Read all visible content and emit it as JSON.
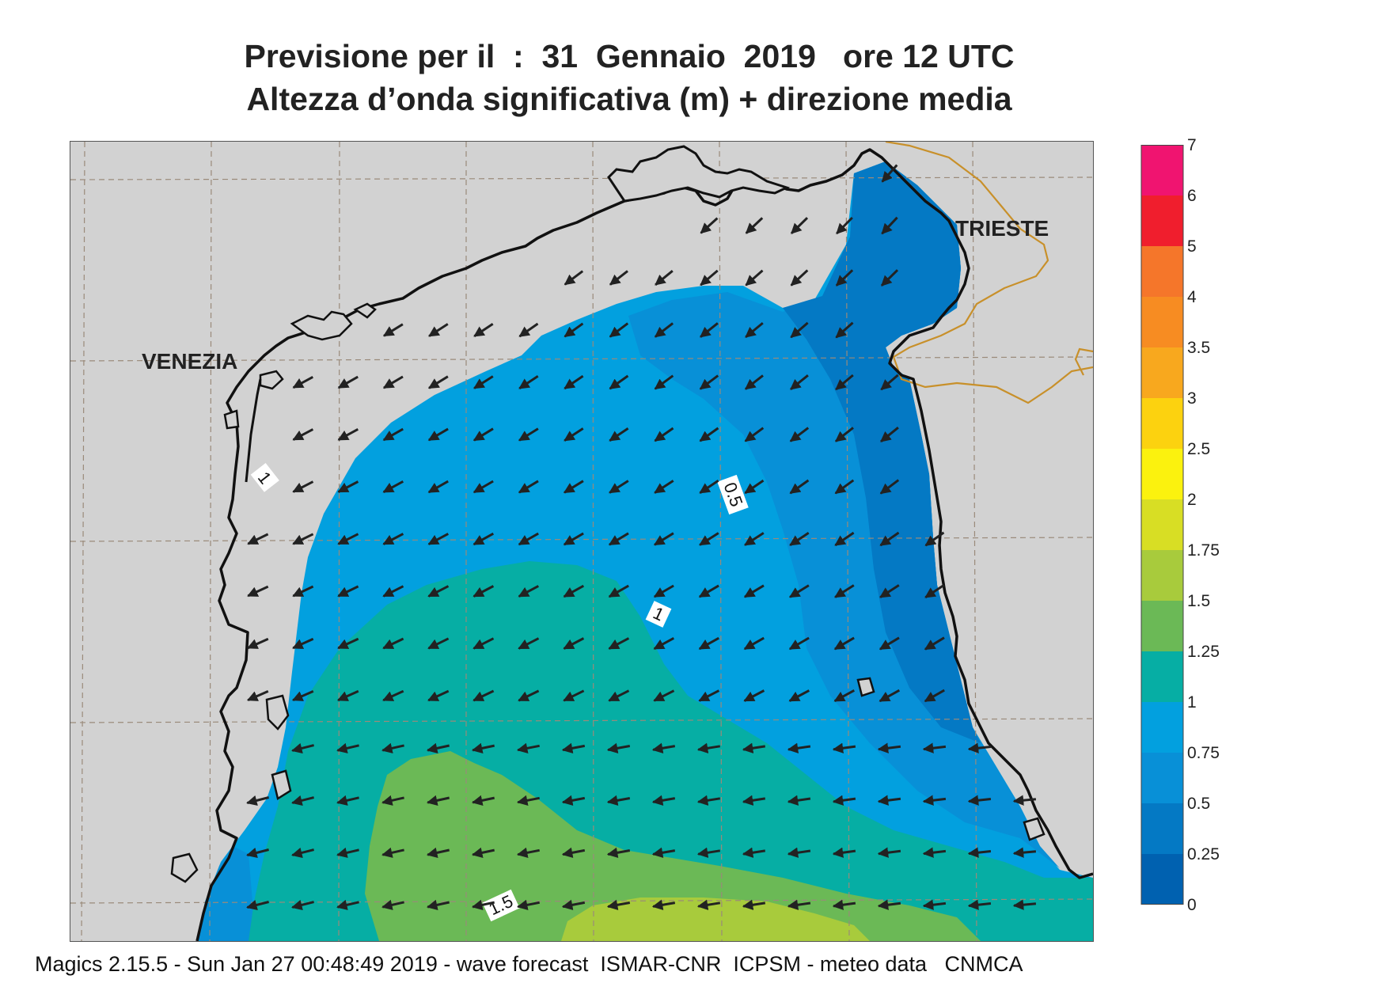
{
  "title": {
    "line1": "Previsione per il  :  31  Gennaio  2019   ore 12 UTC",
    "line2": "Altezza d’onda significativa (m) + direzione media"
  },
  "cities": {
    "venezia": "VENEZIA",
    "trieste": "TRIESTE"
  },
  "contour_labels": [
    "1",
    "0.5",
    "1",
    "1.5"
  ],
  "colorbar": {
    "labels": [
      "7",
      "6",
      "5",
      "4",
      "3.5",
      "3",
      "2.5",
      "2",
      "1.75",
      "1.5",
      "1.25",
      "1",
      "0.75",
      "0.5",
      "0.25",
      "0"
    ],
    "colors": [
      "#f01470",
      "#f01e2d",
      "#f5762a",
      "#f78c22",
      "#f8a81e",
      "#fcd20f",
      "#fbf20e",
      "#d8de24",
      "#a8cb3c",
      "#6bb956",
      "#06aea4",
      "#02a0df",
      "#0890d7",
      "#0479c4",
      "#0061b0"
    ]
  },
  "colors": {
    "land": "#d2d2d2",
    "coast": "#111111",
    "border": "#c8902a",
    "grid": "#9a8a7a",
    "arrow": "#222222"
  },
  "footer": "Magics 2.15.5 - Sun Jan 27 00:48:49 2019 - wave forecast  ISMAR-CNR  ICPSM - meteo data   CNMCA"
}
